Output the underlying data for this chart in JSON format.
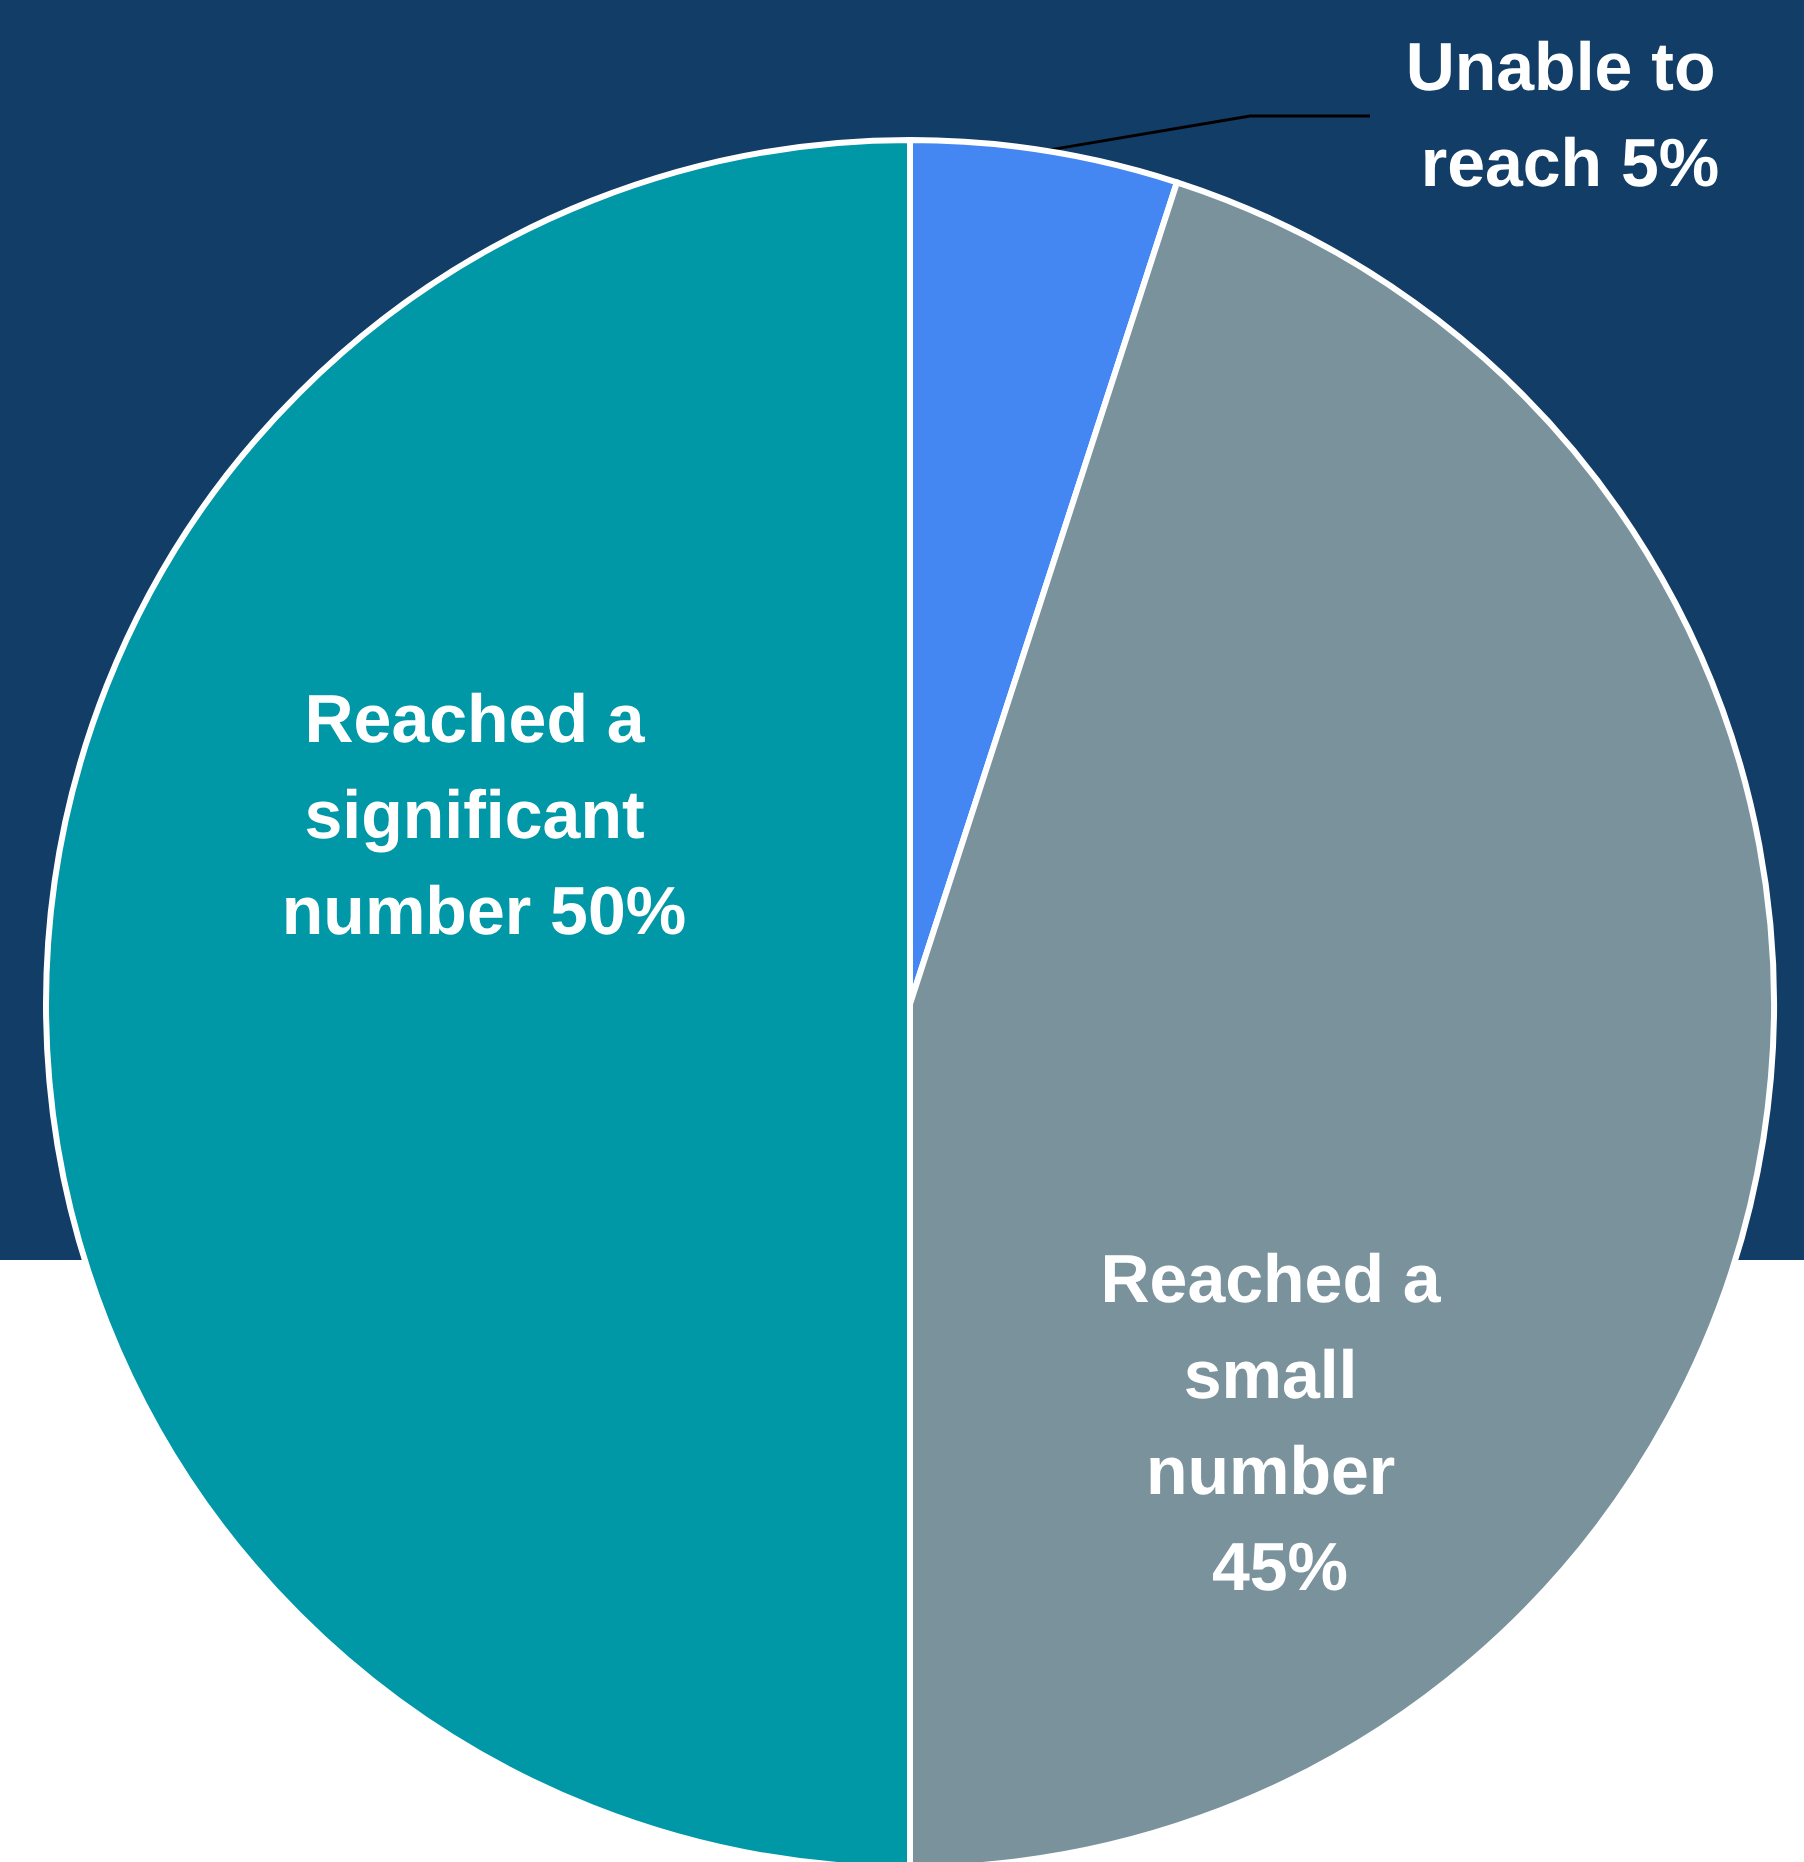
{
  "chart_data": {
    "type": "pie",
    "categories": [
      "Unable to reach",
      "Reached a small number",
      "Reached a significant number"
    ],
    "values": [
      5,
      45,
      50
    ],
    "colors": [
      "#4487f2",
      "#7a929c",
      "#0097a7"
    ],
    "value_labels": [
      "5%",
      "45%",
      "50%"
    ],
    "legend": false
  }
}
